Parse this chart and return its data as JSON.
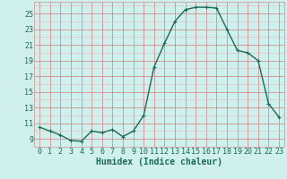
{
  "x": [
    0,
    1,
    2,
    3,
    4,
    5,
    6,
    7,
    8,
    9,
    10,
    11,
    12,
    13,
    14,
    15,
    16,
    17,
    18,
    19,
    20,
    21,
    22,
    23
  ],
  "y": [
    10.5,
    10.0,
    9.5,
    8.8,
    8.7,
    10.0,
    9.8,
    10.2,
    9.3,
    10.0,
    12.0,
    18.2,
    21.2,
    24.0,
    25.5,
    25.8,
    25.8,
    25.7,
    23.0,
    20.3,
    20.0,
    19.0,
    13.5,
    11.8
  ],
  "line_color": "#1a6b5a",
  "marker": "+",
  "marker_size": 3,
  "bg_color": "#cff0ec",
  "grid_minor_color": "#e8b8b8",
  "grid_major_color": "#d09090",
  "axis_color": "#1a6b5a",
  "xlabel": "Humidex (Indice chaleur)",
  "xlim": [
    -0.5,
    23.5
  ],
  "ylim": [
    8.0,
    26.5
  ],
  "yticks": [
    9,
    11,
    13,
    15,
    17,
    19,
    21,
    23,
    25
  ],
  "xticks": [
    0,
    1,
    2,
    3,
    4,
    5,
    6,
    7,
    8,
    9,
    10,
    11,
    12,
    13,
    14,
    15,
    16,
    17,
    18,
    19,
    20,
    21,
    22,
    23
  ],
  "xlabel_fontsize": 7,
  "tick_fontsize": 6,
  "line_width": 1.0
}
